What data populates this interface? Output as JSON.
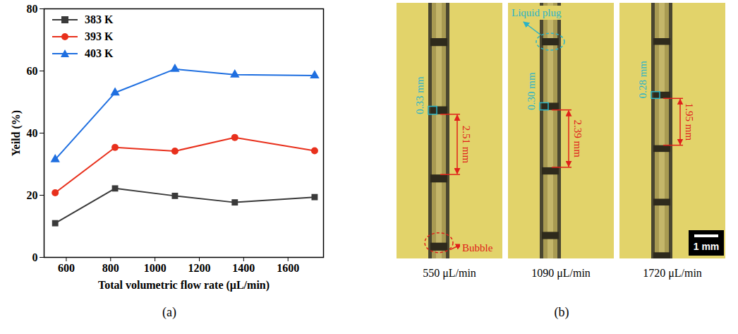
{
  "chart_data": {
    "type": "line",
    "panel_label": "(a)",
    "x_label": "Total volumetric flow rate (μL/min)",
    "y_label": "Yeild (%)",
    "x": [
      550,
      820,
      1090,
      1360,
      1720
    ],
    "series": [
      {
        "name": "383 K",
        "color": "#3a3a3a",
        "marker": "square",
        "values": [
          11.0,
          22.2,
          19.8,
          17.7,
          19.4
        ]
      },
      {
        "name": "393 K",
        "color": "#e8301c",
        "marker": "circle",
        "values": [
          20.8,
          35.4,
          34.2,
          38.6,
          34.3
        ]
      },
      {
        "name": "403 K",
        "color": "#1f6fe0",
        "marker": "triangle",
        "values": [
          31.5,
          53.0,
          60.6,
          58.8,
          58.5
        ]
      }
    ],
    "xlim": [
      500,
      1760
    ],
    "xticks": [
      600,
      800,
      1000,
      1200,
      1400,
      1600
    ],
    "ylim": [
      0,
      80
    ],
    "yticks": [
      0,
      20,
      40,
      60,
      80
    ],
    "grid": false,
    "legend": "upper left"
  },
  "figure_b": {
    "panel_label": "(b)",
    "annotations": {
      "liquid_plug": "Liquid plug",
      "bubble": "Bubble"
    },
    "scale_bar": {
      "value": 1,
      "label": "1 mm"
    },
    "images": [
      {
        "caption": "550 μL/min",
        "plug": {
          "value": 0.33,
          "label": "0.33 mm"
        },
        "bubble": {
          "value": 2.51,
          "label": "2.51 mm"
        }
      },
      {
        "caption": "1090 μL/min",
        "plug": {
          "value": 0.3,
          "label": "0.30 mm"
        },
        "bubble": {
          "value": 2.39,
          "label": "2.39 mm"
        }
      },
      {
        "caption": "1720 μL/min",
        "plug": {
          "value": 0.28,
          "label": "0.28 mm"
        },
        "bubble": {
          "value": 1.95,
          "label": "1.95 mm"
        }
      }
    ]
  }
}
